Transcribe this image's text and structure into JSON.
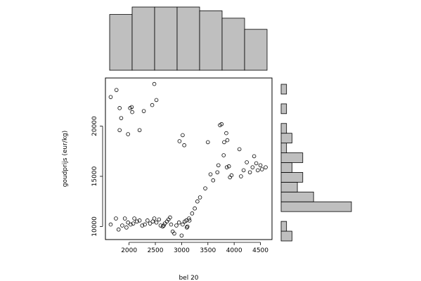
{
  "chart_data": [
    {
      "type": "scatter",
      "xlabel": "bel 20",
      "ylabel": "goudprijs (eur/kg)",
      "title": "",
      "xlim": [
        1550,
        4720
      ],
      "ylim": [
        8700,
        24800
      ],
      "xticks": [
        2000,
        2500,
        3000,
        3500,
        4000,
        4500
      ],
      "yticks": [
        10000,
        15000,
        20000
      ],
      "grid": false,
      "legend": "none",
      "marker": "open-circle",
      "points": [
        [
          1650,
          22900
        ],
        [
          1760,
          23600
        ],
        [
          1820,
          21800
        ],
        [
          1850,
          20800
        ],
        [
          1820,
          19600
        ],
        [
          1980,
          19200
        ],
        [
          2020,
          21800
        ],
        [
          2050,
          21900
        ],
        [
          2060,
          21400
        ],
        [
          2200,
          19600
        ],
        [
          2280,
          21500
        ],
        [
          2440,
          22100
        ],
        [
          2480,
          24200
        ],
        [
          2520,
          22600
        ],
        [
          2960,
          18500
        ],
        [
          3020,
          19100
        ],
        [
          3050,
          18100
        ],
        [
          1650,
          10200
        ],
        [
          1750,
          10800
        ],
        [
          1800,
          9700
        ],
        [
          1870,
          10100
        ],
        [
          1920,
          10800
        ],
        [
          1950,
          9900
        ],
        [
          1980,
          10400
        ],
        [
          2030,
          10200
        ],
        [
          2080,
          10300
        ],
        [
          2100,
          10800
        ],
        [
          2150,
          10500
        ],
        [
          2200,
          10600
        ],
        [
          2250,
          10100
        ],
        [
          2300,
          10200
        ],
        [
          2350,
          10600
        ],
        [
          2400,
          10300
        ],
        [
          2450,
          10500
        ],
        [
          2480,
          10800
        ],
        [
          2520,
          10400
        ],
        [
          2570,
          10700
        ],
        [
          2600,
          10100
        ],
        [
          2640,
          10000
        ],
        [
          2680,
          10300
        ],
        [
          2720,
          10500
        ],
        [
          2750,
          10700
        ],
        [
          2780,
          10900
        ],
        [
          2800,
          10200
        ],
        [
          2830,
          9500
        ],
        [
          2860,
          9300
        ],
        [
          2900,
          10100
        ],
        [
          2950,
          10400
        ],
        [
          3000,
          9100
        ],
        [
          3020,
          10200
        ],
        [
          3060,
          10500
        ],
        [
          3100,
          9900
        ],
        [
          3140,
          10800
        ],
        [
          3200,
          11300
        ],
        [
          3250,
          11800
        ],
        [
          3300,
          12500
        ],
        [
          3350,
          12900
        ],
        [
          3450,
          13800
        ],
        [
          3500,
          18400
        ],
        [
          3550,
          15200
        ],
        [
          3600,
          14600
        ],
        [
          3680,
          15400
        ],
        [
          3700,
          16100
        ],
        [
          3730,
          20100
        ],
        [
          3760,
          20200
        ],
        [
          3800,
          17100
        ],
        [
          3810,
          18400
        ],
        [
          3850,
          19300
        ],
        [
          3870,
          18600
        ],
        [
          3860,
          15900
        ],
        [
          3900,
          16000
        ],
        [
          3920,
          14900
        ],
        [
          3950,
          15100
        ],
        [
          4100,
          17700
        ],
        [
          4130,
          15000
        ],
        [
          4180,
          15600
        ],
        [
          4240,
          16400
        ],
        [
          4300,
          15400
        ],
        [
          4350,
          15900
        ],
        [
          4380,
          17000
        ],
        [
          4420,
          16300
        ],
        [
          4450,
          15600
        ],
        [
          4500,
          16100
        ],
        [
          4530,
          15700
        ],
        [
          4600,
          15900
        ],
        [
          3090,
          10600
        ],
        [
          3110,
          10000
        ],
        [
          3150,
          10600
        ],
        [
          2660,
          10100
        ]
      ]
    },
    {
      "type": "bar",
      "role": "marginal-histogram-x",
      "bins": [
        [
          1500,
          2000
        ],
        [
          2000,
          2500
        ],
        [
          2500,
          3000
        ],
        [
          3000,
          3500
        ],
        [
          3500,
          4000
        ],
        [
          4000,
          4500
        ],
        [
          4500,
          5000
        ]
      ],
      "values": [
        15,
        17,
        17,
        17,
        16,
        14,
        11
      ]
    },
    {
      "type": "bar",
      "role": "marginal-histogram-y",
      "orientation": "horizontal",
      "bins": [
        [
          9000,
          10000
        ],
        [
          10000,
          11000
        ],
        [
          11000,
          12000
        ],
        [
          12000,
          13000
        ],
        [
          13000,
          14000
        ],
        [
          14000,
          15000
        ],
        [
          15000,
          16000
        ],
        [
          16000,
          17000
        ],
        [
          17000,
          18000
        ],
        [
          18000,
          19000
        ],
        [
          19000,
          20000
        ],
        [
          20000,
          21000
        ],
        [
          21000,
          22000
        ],
        [
          22000,
          23000
        ],
        [
          23000,
          24000
        ],
        [
          24000,
          25000
        ]
      ],
      "values": [
        2,
        1,
        0,
        13,
        6,
        3,
        4,
        2,
        4,
        1,
        2,
        1,
        0,
        1,
        0,
        1
      ]
    }
  ]
}
